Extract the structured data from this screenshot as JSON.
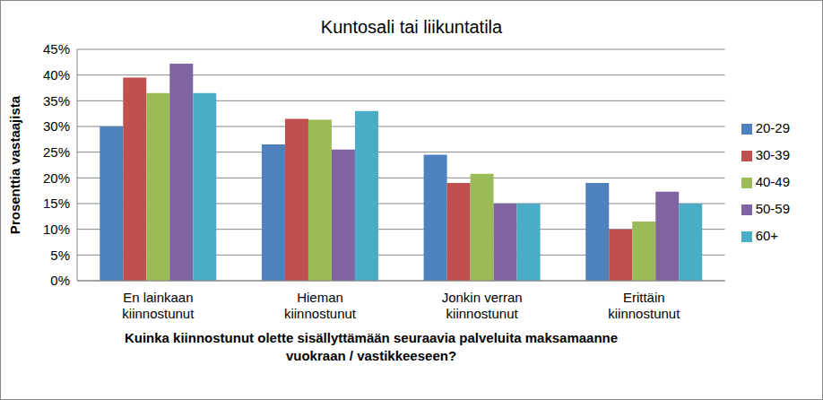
{
  "chart_data": {
    "type": "bar",
    "title": "Kuntosali tai liikuntatila",
    "x_label": "Kuinka kiinnostunut olette sisällyttämään seuraavia palveluita maksamaanne vuokraan / vastikkeeseen?",
    "y_label": "Prosenttia vastaajista",
    "categories": [
      "En lainkaan kiinnostunut",
      "Hieman kiinnostunut",
      "Jonkin verran kiinnostunut",
      "Erittäin kiinnostunut"
    ],
    "series": [
      {
        "name": "20-29",
        "color": "#4f81bd",
        "values": [
          30,
          26.5,
          24.5,
          19
        ]
      },
      {
        "name": "30-39",
        "color": "#c0504d",
        "values": [
          39.5,
          31.5,
          19,
          10
        ]
      },
      {
        "name": "40-49",
        "color": "#9bbb59",
        "values": [
          36.5,
          31.3,
          20.8,
          11.5
        ]
      },
      {
        "name": "50-59",
        "color": "#8064a2",
        "values": [
          42.2,
          25.5,
          15,
          17.3
        ]
      },
      {
        "name": "60+",
        "color": "#4bacc6",
        "values": [
          36.5,
          33,
          15,
          15
        ]
      }
    ],
    "ylim": [
      0,
      45
    ],
    "yticks": [
      {
        "value": 0,
        "label": "0%"
      },
      {
        "value": 5,
        "label": "5%"
      },
      {
        "value": 10,
        "label": "10%"
      },
      {
        "value": 15,
        "label": "15%"
      },
      {
        "value": 20,
        "label": "20%"
      },
      {
        "value": 25,
        "label": "25%"
      },
      {
        "value": 30,
        "label": "30%"
      },
      {
        "value": 35,
        "label": "35%"
      },
      {
        "value": 40,
        "label": "40%"
      },
      {
        "value": 45,
        "label": "45%"
      }
    ],
    "grid": true,
    "legend": "right"
  }
}
